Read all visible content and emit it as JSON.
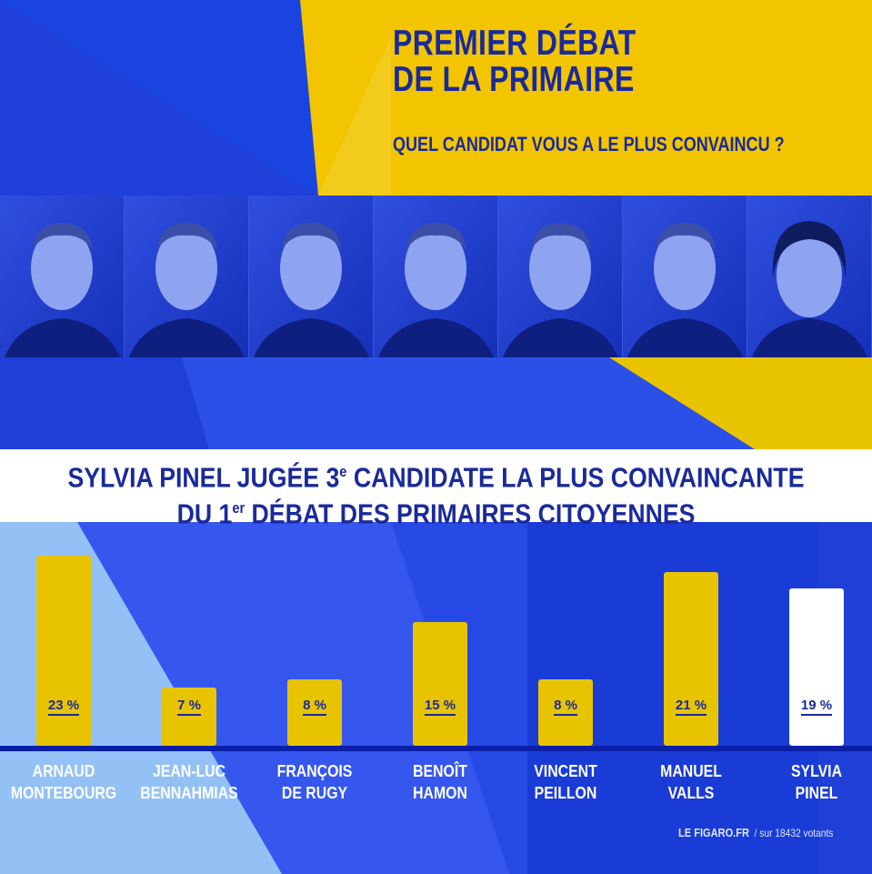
{
  "header": {
    "title_line1": "PREMIER DÉBAT",
    "title_line2": "DE LA PRIMAIRE",
    "question": "QUEL CANDIDAT VOUS A LE PLUS CONVAINCU ?"
  },
  "headline": {
    "line1": "SYLVIA PINEL JUGÉE 3",
    "line1_sup": "e",
    "line1_rest": " CANDIDATE LA PLUS CONVAINCANTE",
    "line2": "DU 1",
    "line2_sup": "er",
    "line2_rest": " DÉBAT DES PRIMAIRES CITOYENNES"
  },
  "colors": {
    "yellow": "#e8c400",
    "blue": "#1f3fd6",
    "navy": "#1a2a9a",
    "highlight": "#ffffff"
  },
  "chart_data": {
    "type": "bar",
    "title": "QUEL CANDIDAT VOUS A LE PLUS CONVAINCU ?",
    "unit": "%",
    "categories": [
      [
        "ARNAUD",
        "MONTEBOURG"
      ],
      [
        "JEAN-LUC",
        "BENNAHMIAS"
      ],
      [
        "FRANÇOIS",
        "DE RUGY"
      ],
      [
        "BENOÎT",
        "HAMON"
      ],
      [
        "VINCENT",
        "PEILLON"
      ],
      [
        "MANUEL",
        "VALLS"
      ],
      [
        "SYLVIA",
        "PINEL"
      ]
    ],
    "values": [
      23,
      7,
      8,
      15,
      8,
      21,
      19
    ],
    "labels": [
      "23 %",
      "7 %",
      "8 %",
      "15 %",
      "8 %",
      "21 %",
      "19 %"
    ],
    "highlighted": "SYLVIA PINEL",
    "ylim": [
      0,
      25
    ],
    "grid": false
  },
  "footer": {
    "source": "LE FIGARO.FR",
    "note": "/ sur 18432 votants"
  }
}
